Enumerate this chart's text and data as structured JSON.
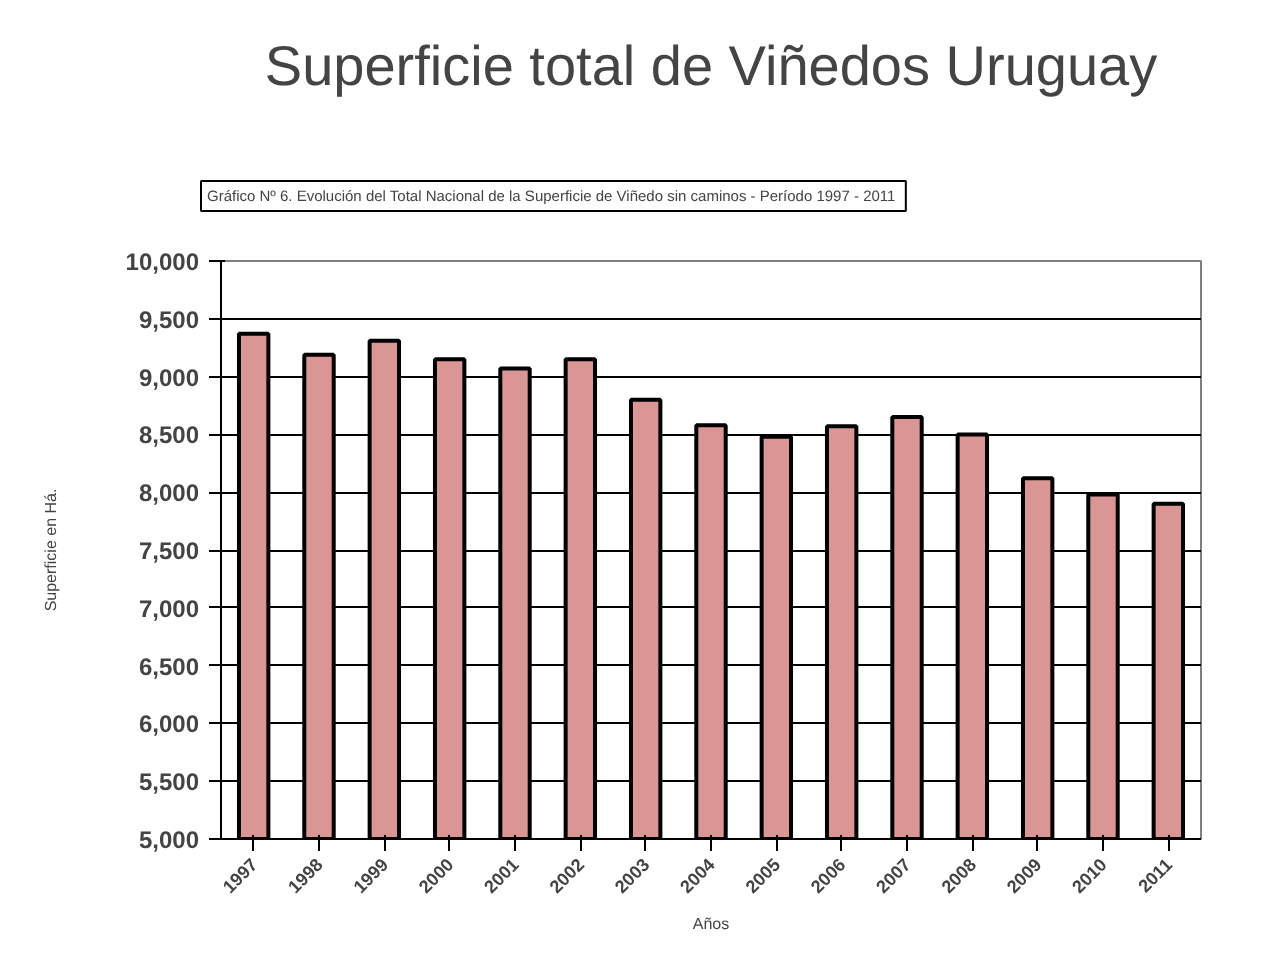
{
  "chart_data": {
    "type": "bar",
    "title": "Superficie total de Viñedos Uruguay",
    "subtitle": "Gráfico Nº 6. Evolución del Total Nacional de la Superficie de Viñedo sin caminos  - Período 1997 - 2011",
    "xlabel": "Años",
    "ylabel": "Superficie en Há.",
    "categories": [
      "1997",
      "1998",
      "1999",
      "2000",
      "2001",
      "2002",
      "2003",
      "2004",
      "2005",
      "2006",
      "2007",
      "2008",
      "2009",
      "2010",
      "2011"
    ],
    "values": [
      9370,
      9190,
      9310,
      9150,
      9070,
      9150,
      8800,
      8580,
      8480,
      8570,
      8650,
      8500,
      8120,
      7980,
      7900
    ],
    "color": "#d99694",
    "ylim": [
      5000,
      10000
    ],
    "yticks": [
      {
        "value": 5000,
        "label": "5,000"
      },
      {
        "value": 5500,
        "label": "5,500"
      },
      {
        "value": 6000,
        "label": "6,000"
      },
      {
        "value": 6500,
        "label": "6,500"
      },
      {
        "value": 7000,
        "label": "7,000"
      },
      {
        "value": 7500,
        "label": "7,500"
      },
      {
        "value": 8000,
        "label": "8,000"
      },
      {
        "value": 8500,
        "label": "8,500"
      },
      {
        "value": 9000,
        "label": "9,000"
      },
      {
        "value": 9500,
        "label": "9,500"
      },
      {
        "value": 10000,
        "label": "10,000"
      }
    ],
    "grid": "y"
  }
}
